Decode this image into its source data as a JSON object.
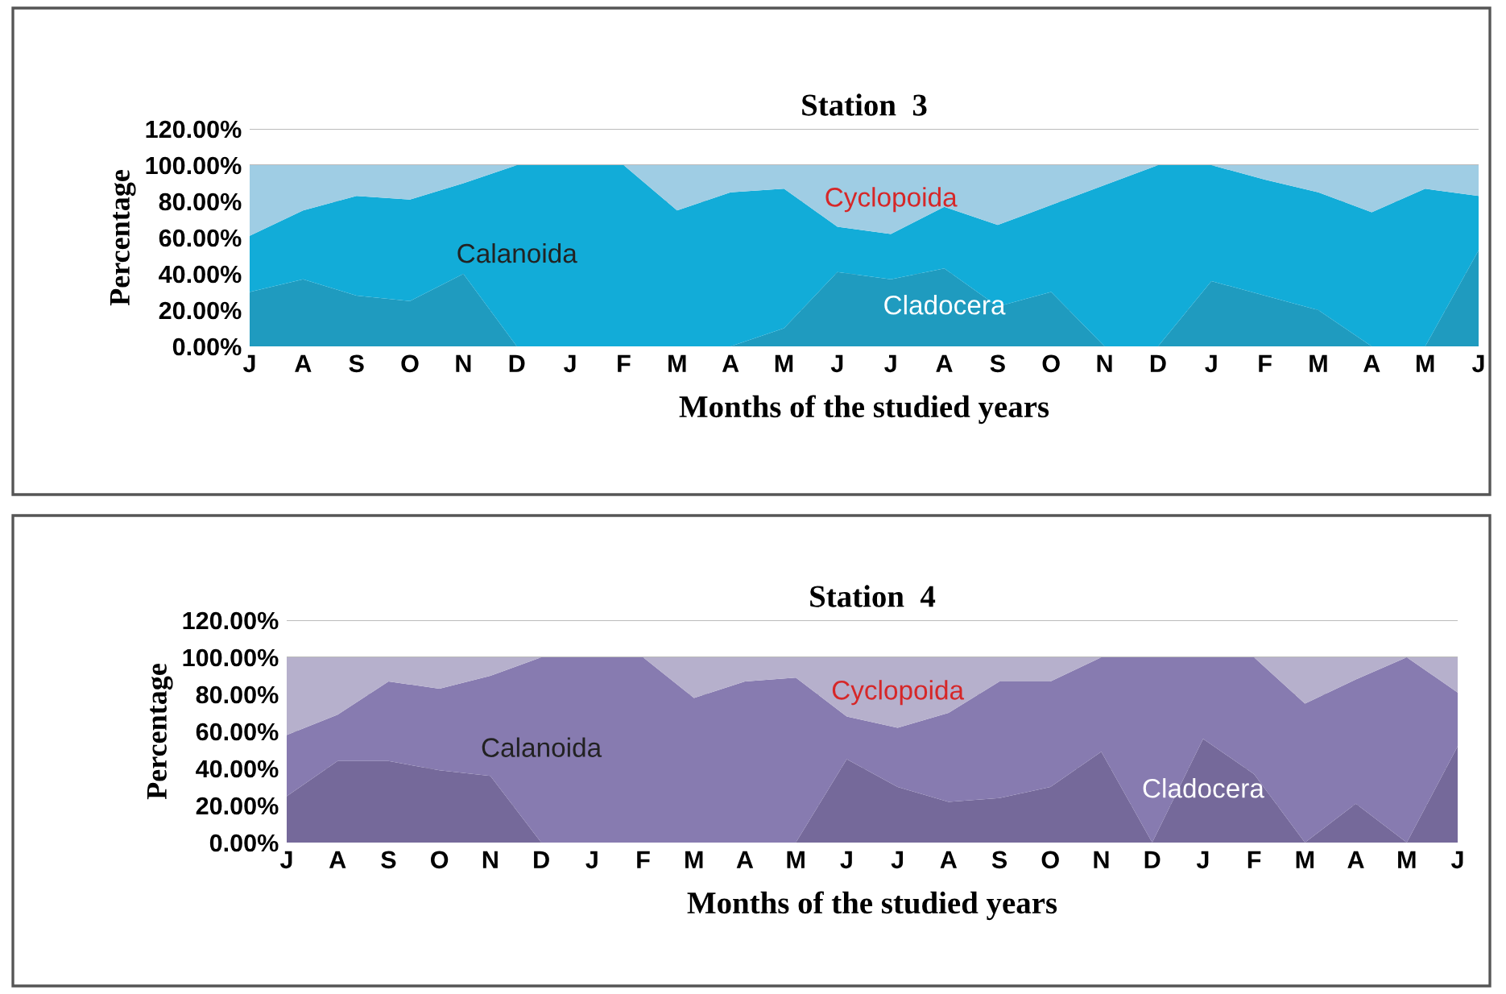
{
  "chart_data": [
    {
      "type": "area",
      "stacked": true,
      "title": "Station  3",
      "xlabel": "Months of the studied years",
      "ylabel": "Percentage",
      "categories": [
        "J",
        "A",
        "S",
        "O",
        "N",
        "D",
        "J",
        "F",
        "M",
        "A",
        "M",
        "J",
        "J",
        "A",
        "S",
        "O",
        "N",
        "D",
        "J",
        "F",
        "M",
        "A",
        "M",
        "J"
      ],
      "series": [
        {
          "name": "Cladocera",
          "color": "#1f9bbf",
          "values": [
            30,
            37,
            28,
            25,
            40,
            0,
            0,
            0,
            0,
            0,
            10,
            41,
            37,
            43,
            22,
            30,
            0,
            0,
            36,
            28,
            20,
            0,
            0,
            53
          ]
        },
        {
          "name": "Calanoida",
          "color": "#12acd8",
          "values": [
            31,
            38,
            55,
            56,
            50,
            100,
            100,
            100,
            75,
            85,
            77,
            25,
            25,
            34,
            45,
            48,
            89,
            100,
            64,
            64,
            65,
            74,
            87,
            30
          ]
        },
        {
          "name": "Cyclopoida",
          "color": "#9fcde4",
          "values": [
            39,
            25,
            17,
            19,
            10,
            0,
            0,
            0,
            25,
            15,
            13,
            34,
            38,
            23,
            33,
            22,
            11,
            0,
            0,
            8,
            15,
            26,
            13,
            17
          ]
        }
      ],
      "ylim": [
        0,
        120
      ],
      "yticks": [
        {
          "value": 0,
          "label": "0.00%"
        },
        {
          "value": 20,
          "label": "20.00%"
        },
        {
          "value": 40,
          "label": "40.00%"
        },
        {
          "value": 60,
          "label": "60.00%"
        },
        {
          "value": 80,
          "label": "80.00%"
        },
        {
          "value": 100,
          "label": "100.00%"
        },
        {
          "value": 120,
          "label": "120.00%"
        }
      ],
      "grid": "y",
      "legend": false
    },
    {
      "type": "area",
      "stacked": true,
      "title": "Station  4",
      "xlabel": "Months of the studied years",
      "ylabel": "Percentage",
      "categories": [
        "J",
        "A",
        "S",
        "O",
        "N",
        "D",
        "J",
        "F",
        "M",
        "A",
        "M",
        "J",
        "J",
        "A",
        "S",
        "O",
        "N",
        "D",
        "J",
        "F",
        "M",
        "A",
        "M",
        "J"
      ],
      "series": [
        {
          "name": "Cladocera",
          "color": "#75699a",
          "values": [
            25,
            44,
            44,
            39,
            36,
            0,
            0,
            0,
            0,
            0,
            0,
            45,
            30,
            22,
            24,
            30,
            49,
            0,
            56,
            37,
            0,
            21,
            0,
            52
          ]
        },
        {
          "name": "Calanoida",
          "color": "#877bb0",
          "values": [
            33,
            25,
            43,
            44,
            54,
            100,
            100,
            100,
            78,
            87,
            89,
            23,
            32,
            48,
            63,
            57,
            51,
            100,
            44,
            63,
            75,
            67,
            100,
            29
          ]
        },
        {
          "name": "Cyclopoida",
          "color": "#b6b0cc",
          "values": [
            42,
            31,
            13,
            17,
            10,
            0,
            0,
            0,
            22,
            13,
            11,
            32,
            38,
            30,
            13,
            13,
            0,
            0,
            0,
            0,
            25,
            12,
            0,
            19
          ]
        }
      ],
      "ylim": [
        0,
        120
      ],
      "yticks": [
        {
          "value": 0,
          "label": "0.00%"
        },
        {
          "value": 20,
          "label": "20.00%"
        },
        {
          "value": 40,
          "label": "40.00%"
        },
        {
          "value": 60,
          "label": "60.00%"
        },
        {
          "value": 80,
          "label": "80.00%"
        },
        {
          "value": 100,
          "label": "100.00%"
        },
        {
          "value": 120,
          "label": "120.00%"
        }
      ],
      "grid": "y",
      "legend": false
    }
  ]
}
